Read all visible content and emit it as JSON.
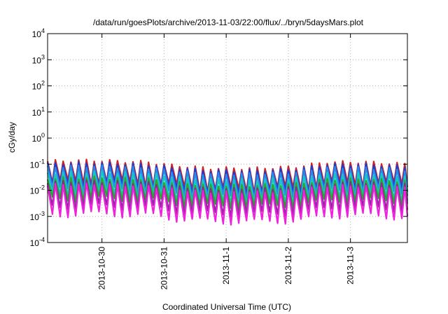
{
  "chart_data": {
    "type": "line",
    "title": "/data/run/goesPlots/archive/2013-11-03/22:00/flux/../bryn/5daysMars.plot",
    "xlabel": "Coordinated Universal Time (UTC)",
    "ylabel": "cGy/day",
    "yscale": "log",
    "ylim": [
      0.0001,
      10000
    ],
    "xlim": [
      "2013-10-29T03:00",
      "2013-11-03T22:00"
    ],
    "grid": true,
    "x_ticks": [
      "2013-10-30",
      "2013-10-31",
      "2013-11-1",
      "2013-11-2",
      "2013-11-3"
    ],
    "y_ticks": [
      {
        "base": "10",
        "exp": "-4"
      },
      {
        "base": "10",
        "exp": "-3"
      },
      {
        "base": "10",
        "exp": "-2"
      },
      {
        "base": "10",
        "exp": "-1"
      },
      {
        "base": "10",
        "exp": "0"
      },
      {
        "base": "10",
        "exp": "1"
      },
      {
        "base": "10",
        "exp": "2"
      },
      {
        "base": "10",
        "exp": "3"
      },
      {
        "base": "10",
        "exp": "4"
      }
    ],
    "pattern": {
      "oscillation_period_hours": 3,
      "note": "sawtooth daily oscillation of many channels",
      "peak_envelope": [
        {
          "x": "2013-10-29T03:00",
          "y": 0.13
        },
        {
          "x": "2013-10-29T21:00",
          "y": 0.14
        },
        {
          "x": "2013-10-30T06:00",
          "y": 0.13
        },
        {
          "x": "2013-10-30T18:00",
          "y": 0.12
        },
        {
          "x": "2013-10-31T03:00",
          "y": 0.09
        },
        {
          "x": "2013-10-31T18:00",
          "y": 0.07
        },
        {
          "x": "2013-11-01T12:00",
          "y": 0.07
        },
        {
          "x": "2013-11-02T03:00",
          "y": 0.08
        },
        {
          "x": "2013-11-02T15:00",
          "y": 0.12
        },
        {
          "x": "2013-11-03T06:00",
          "y": 0.12
        },
        {
          "x": "2013-11-03T22:00",
          "y": 0.1
        }
      ]
    },
    "series": [
      {
        "color": "#d42020",
        "peak_factor": 1.0,
        "trough_factor": 0.15
      },
      {
        "color": "#1a3fd0",
        "peak_factor": 0.8,
        "trough_factor": 0.11
      },
      {
        "color": "#2a8ae8",
        "peak_factor": 0.6,
        "trough_factor": 0.08
      },
      {
        "color": "#18c8c0",
        "peak_factor": 0.36,
        "trough_factor": 0.05
      },
      {
        "color": "#2aa82a",
        "peak_factor": 0.22,
        "trough_factor": 0.035
      },
      {
        "color": "#8a2a9a",
        "peak_factor": 0.16,
        "trough_factor": 0.018
      },
      {
        "color": "#ee22dd",
        "peak_factor": 0.12,
        "trough_factor": 0.009
      }
    ]
  }
}
